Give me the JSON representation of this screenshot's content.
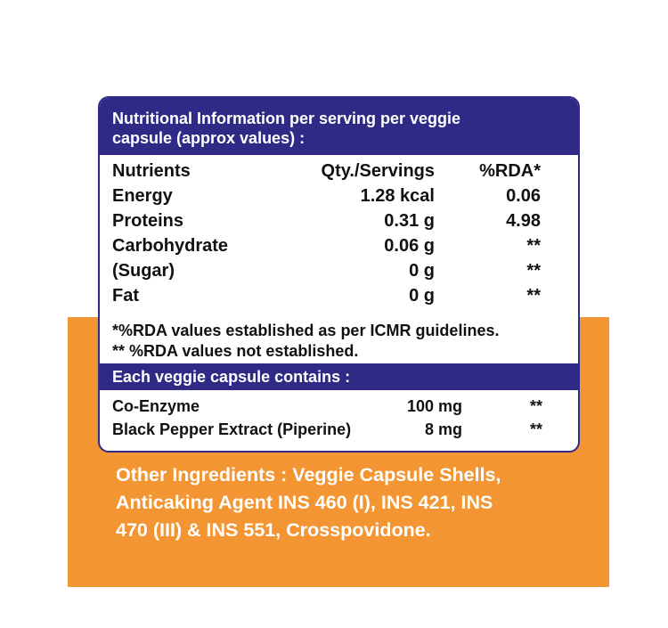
{
  "header": {
    "title_line1": "Nutritional Information per serving per veggie",
    "title_line2": "capsule (approx values) :"
  },
  "nutrition_table": {
    "columns": [
      "Nutrients",
      "Qty./Servings",
      "%RDA*"
    ],
    "rows": [
      {
        "nutrient": "Energy",
        "qty": "1.28 kcal",
        "rda": "0.06"
      },
      {
        "nutrient": "Proteins",
        "qty": "0.31 g",
        "rda": "4.98"
      },
      {
        "nutrient": "Carbohydrate",
        "qty": "0.06 g",
        "rda": "**"
      },
      {
        "nutrient": "(Sugar)",
        "qty": "0 g",
        "rda": "**"
      },
      {
        "nutrient": "Fat",
        "qty": "0 g",
        "rda": "**"
      }
    ]
  },
  "footnotes": {
    "line1": "*%RDA values established as per ICMR guidelines.",
    "line2": "** %RDA values not established."
  },
  "capsule_section": {
    "title": "Each veggie capsule contains :",
    "rows": [
      {
        "name": "Co-Enzyme",
        "qty": "100 mg",
        "rda": "**"
      },
      {
        "name": "Black Pepper Extract (Piperine)",
        "qty": "8 mg",
        "rda": "**"
      }
    ]
  },
  "other_ingredients": {
    "line1": "Other Ingredients : Veggie Capsule Shells,",
    "line2": "Anticaking Agent INS 460 (I), INS 421, INS",
    "line3": "470 (III) & INS 551, Crosspovidone."
  },
  "colors": {
    "band": "#2f2a86",
    "orange": "#f29532",
    "text": "#111111"
  }
}
